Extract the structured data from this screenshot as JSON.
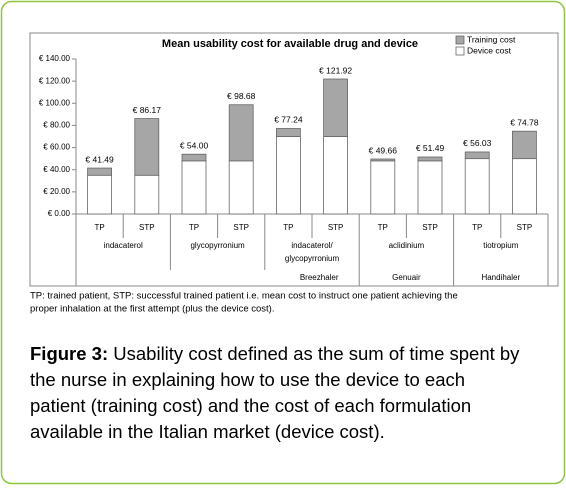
{
  "chart_data": {
    "type": "stacked_bar",
    "title": "Mean usability cost for available drug and device",
    "categories": [
      "TP",
      "STP",
      "TP",
      "STP",
      "TP",
      "STP",
      "TP",
      "STP",
      "TP",
      "STP"
    ],
    "series": [
      {
        "name": "Device cost",
        "color": "#ffffff",
        "values": [
          35,
          35,
          48,
          48,
          70,
          70,
          48,
          48,
          50,
          50
        ]
      },
      {
        "name": "Training cost",
        "color": "#a6a6a6",
        "values": [
          6.49,
          51.17,
          6,
          50.68,
          7.24,
          51.92,
          1.66,
          3.49,
          6.03,
          24.78
        ]
      }
    ],
    "totals": [
      41.49,
      86.17,
      54.0,
      98.68,
      77.24,
      121.92,
      49.66,
      51.49,
      56.03,
      74.78
    ],
    "total_labels": [
      "€ 41.49",
      "€ 86.17",
      "€ 54.00",
      "€ 98.68",
      "€ 77.24",
      "€ 121.92",
      "€ 49.66",
      "€ 51.49",
      "€ 56.03",
      "€ 74.78"
    ],
    "drugs": [
      [
        "indacaterol"
      ],
      [
        "glycopyrronium"
      ],
      [
        "indacaterol/",
        "glycopyrronium"
      ],
      [
        "aclidinium"
      ],
      [
        "tiotropium"
      ]
    ],
    "devices": [
      "Breezhaler",
      "Genuair",
      "Handihaler"
    ],
    "ylim": [
      0,
      140
    ],
    "yticks": [
      {
        "value": 0,
        "label": "€ 0.00"
      },
      {
        "value": 20,
        "label": "€ 20.00"
      },
      {
        "value": 40,
        "label": "€ 40.00"
      },
      {
        "value": 60,
        "label": "€ 60.00"
      },
      {
        "value": 80,
        "label": "€ 80.00"
      },
      {
        "value": 100,
        "label": "€ 100.00"
      },
      {
        "value": 120,
        "label": "€ 120.00"
      },
      {
        "value": 140,
        "label": "€ 140.00"
      }
    ],
    "grid": false
  },
  "note": [
    "TP: trained patient, STP: successful trained patient i.e. mean cost to instruct one patient achieving the",
    "proper inhalation at the first attempt (plus the device cost)."
  ],
  "caption": {
    "label": "Figure 3:",
    "lines": [
      " Usability cost defined as the sum of time spent by",
      "the nurse in explaining how to use the device to each",
      "patient (training cost) and the cost of each formulation",
      "available in the Italian market (device cost)."
    ]
  }
}
